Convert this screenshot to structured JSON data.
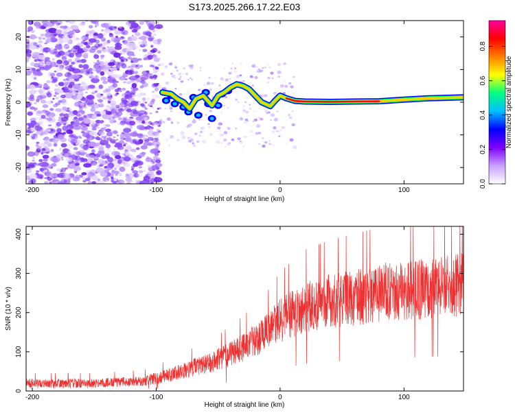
{
  "title": "S173.2025.266.17.22.E03",
  "chart_data": [
    {
      "type": "heatmap",
      "title": "S173.2025.266.17.22.E03",
      "xlabel": "Height of straight line (km)",
      "ylabel": "Frequency (Hz)",
      "xlim": [
        -205,
        148
      ],
      "ylim": [
        -25,
        25
      ],
      "xticks": [
        -200,
        -100,
        0,
        100
      ],
      "yticks": [
        -20,
        -10,
        0,
        10,
        20
      ],
      "colorbar": {
        "label": "Normalized spectral amplitude",
        "range": [
          0,
          0.95
        ],
        "ticks": [
          0.0,
          0.2,
          0.4,
          0.6,
          0.8
        ],
        "tick_labels": [
          "0.0",
          "0.2",
          "0.4",
          "0.6",
          "0.8"
        ],
        "colors": [
          "#ffffff",
          "#c8a0ff",
          "#8000ff",
          "#0000ff",
          "#00c0ff",
          "#00ff80",
          "#ffff00",
          "#ff8000",
          "#ff0000",
          "#ff00a0"
        ]
      },
      "ridge": {
        "points": [
          [
            -95,
            3
          ],
          [
            -88,
            2.5
          ],
          [
            -83,
            1
          ],
          [
            -78,
            0
          ],
          [
            -73,
            -2
          ],
          [
            -68,
            1
          ],
          [
            -62,
            2
          ],
          [
            -55,
            -1
          ],
          [
            -50,
            2
          ],
          [
            -45,
            3
          ],
          [
            -40,
            4.5
          ],
          [
            -35,
            5.5
          ],
          [
            -30,
            5
          ],
          [
            -25,
            4
          ],
          [
            -20,
            2
          ],
          [
            -15,
            0
          ],
          [
            -8,
            -1.2
          ],
          [
            -4,
            0.5
          ],
          [
            0,
            2
          ],
          [
            5,
            1.2
          ],
          [
            12,
            0.4
          ],
          [
            20,
            0.2
          ],
          [
            40,
            0.1
          ],
          [
            60,
            0.2
          ],
          [
            80,
            0.3
          ],
          [
            100,
            0.8
          ],
          [
            120,
            1.2
          ],
          [
            148,
            1.5
          ]
        ],
        "color": "#ff0000"
      }
    },
    {
      "type": "line",
      "xlabel": "Height of straight line (km)",
      "ylabel": "SNR (10 * v/v)",
      "xlim": [
        -205,
        148
      ],
      "ylim": [
        0,
        420
      ],
      "xticks": [
        -200,
        -100,
        0,
        100
      ],
      "yticks": [
        0,
        100,
        200,
        300,
        400
      ],
      "series": [
        {
          "name": "SNR",
          "color": "#f03030",
          "trend": [
            [
              -205,
              20
            ],
            [
              -150,
              20
            ],
            [
              -110,
              25
            ],
            [
              -90,
              40
            ],
            [
              -70,
              60
            ],
            [
              -50,
              80
            ],
            [
              -30,
              110
            ],
            [
              -10,
              150
            ],
            [
              0,
              180
            ],
            [
              20,
              215
            ],
            [
              40,
              230
            ],
            [
              60,
              240
            ],
            [
              80,
              250
            ],
            [
              100,
              255
            ],
            [
              120,
              262
            ],
            [
              148,
              270
            ]
          ]
        }
      ]
    }
  ]
}
